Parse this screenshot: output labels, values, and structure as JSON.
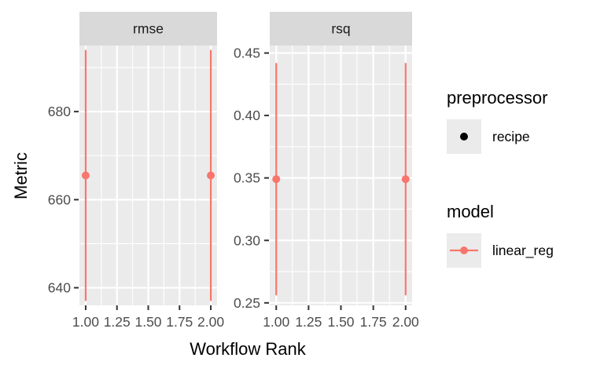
{
  "chart_data": {
    "type": "scatter",
    "xlabel": "Workflow Rank",
    "ylabel": "Metric",
    "colors": {
      "series": "#F8766D",
      "panel_bg": "#EBEBEB",
      "strip_bg": "#D9D9D9",
      "grid": "#FFFFFF"
    },
    "facets": [
      {
        "strip": "rmse",
        "xlim": [
          0.95,
          2.05
        ],
        "ylim": [
          636,
          695
        ],
        "x_ticks": [
          1.0,
          1.25,
          1.5,
          1.75,
          2.0
        ],
        "x_tick_labels": [
          "1.00",
          "1.25",
          "1.50",
          "1.75",
          "2.00"
        ],
        "y_ticks": [
          640,
          660,
          680
        ],
        "y_tick_labels": [
          "640",
          "660",
          "680"
        ],
        "points": [
          {
            "x": 1,
            "y": 665.5,
            "ymin": 637,
            "ymax": 694
          },
          {
            "x": 2,
            "y": 665.5,
            "ymin": 637,
            "ymax": 694
          }
        ]
      },
      {
        "strip": "rsq",
        "xlim": [
          0.95,
          2.05
        ],
        "ylim": [
          0.248,
          0.456
        ],
        "x_ticks": [
          1.0,
          1.25,
          1.5,
          1.75,
          2.0
        ],
        "x_tick_labels": [
          "1.00",
          "1.25",
          "1.50",
          "1.75",
          "2.00"
        ],
        "y_ticks": [
          0.25,
          0.3,
          0.35,
          0.4,
          0.45
        ],
        "y_tick_labels": [
          "0.25",
          "0.30",
          "0.35",
          "0.40",
          "0.45"
        ],
        "points": [
          {
            "x": 1,
            "y": 0.349,
            "ymin": 0.256,
            "ymax": 0.442
          },
          {
            "x": 2,
            "y": 0.349,
            "ymin": 0.256,
            "ymax": 0.442
          }
        ]
      }
    ],
    "legend": {
      "placement": "right",
      "groups": [
        {
          "title": "preprocessor",
          "items": [
            {
              "label": "recipe",
              "symbol": "point",
              "color": "#000000"
            }
          ]
        },
        {
          "title": "model",
          "items": [
            {
              "label": "linear_reg",
              "symbol": "point-line",
              "color": "#F8766D"
            }
          ]
        }
      ]
    }
  }
}
